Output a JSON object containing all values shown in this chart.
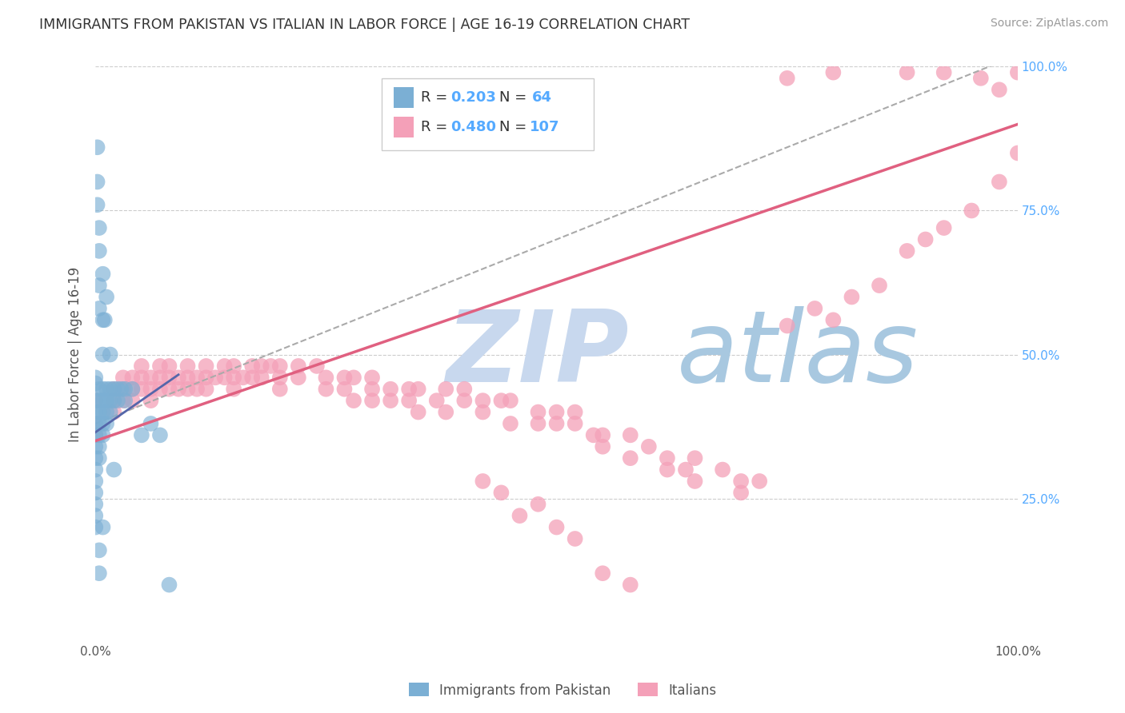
{
  "title": "IMMIGRANTS FROM PAKISTAN VS ITALIAN IN LABOR FORCE | AGE 16-19 CORRELATION CHART",
  "source": "Source: ZipAtlas.com",
  "ylabel": "In Labor Force | Age 16-19",
  "xlim": [
    0,
    1.0
  ],
  "ylim": [
    0,
    1.0
  ],
  "color_pakistan": "#7bafd4",
  "color_italian": "#f4a0b8",
  "color_line_pakistan": "#8888bb",
  "color_line_italian": "#e06080",
  "color_grid": "#cccccc",
  "color_watermark_zip": "#c8d8ee",
  "color_watermark_atlas": "#a8c8e8",
  "pakistan_points": [
    [
      0.0,
      0.42
    ],
    [
      0.0,
      0.4
    ],
    [
      0.0,
      0.38
    ],
    [
      0.0,
      0.36
    ],
    [
      0.0,
      0.34
    ],
    [
      0.0,
      0.32
    ],
    [
      0.0,
      0.3
    ],
    [
      0.0,
      0.28
    ],
    [
      0.0,
      0.26
    ],
    [
      0.0,
      0.24
    ],
    [
      0.0,
      0.22
    ],
    [
      0.0,
      0.2
    ],
    [
      0.0,
      0.45
    ],
    [
      0.0,
      0.46
    ],
    [
      0.004,
      0.44
    ],
    [
      0.004,
      0.42
    ],
    [
      0.004,
      0.4
    ],
    [
      0.004,
      0.38
    ],
    [
      0.004,
      0.36
    ],
    [
      0.004,
      0.34
    ],
    [
      0.004,
      0.32
    ],
    [
      0.008,
      0.44
    ],
    [
      0.008,
      0.42
    ],
    [
      0.008,
      0.4
    ],
    [
      0.008,
      0.38
    ],
    [
      0.008,
      0.36
    ],
    [
      0.008,
      0.5
    ],
    [
      0.012,
      0.44
    ],
    [
      0.012,
      0.42
    ],
    [
      0.012,
      0.4
    ],
    [
      0.012,
      0.38
    ],
    [
      0.016,
      0.44
    ],
    [
      0.016,
      0.42
    ],
    [
      0.016,
      0.4
    ],
    [
      0.02,
      0.44
    ],
    [
      0.02,
      0.42
    ],
    [
      0.024,
      0.44
    ],
    [
      0.024,
      0.42
    ],
    [
      0.028,
      0.44
    ],
    [
      0.032,
      0.44
    ],
    [
      0.032,
      0.42
    ],
    [
      0.04,
      0.44
    ],
    [
      0.05,
      0.36
    ],
    [
      0.06,
      0.38
    ],
    [
      0.07,
      0.36
    ],
    [
      0.08,
      0.1
    ],
    [
      0.004,
      0.58
    ],
    [
      0.004,
      0.62
    ],
    [
      0.004,
      0.68
    ],
    [
      0.004,
      0.72
    ],
    [
      0.008,
      0.56
    ],
    [
      0.008,
      0.64
    ],
    [
      0.002,
      0.76
    ],
    [
      0.002,
      0.8
    ],
    [
      0.01,
      0.56
    ],
    [
      0.012,
      0.6
    ],
    [
      0.016,
      0.5
    ],
    [
      0.002,
      0.86
    ],
    [
      0.004,
      0.16
    ],
    [
      0.004,
      0.12
    ],
    [
      0.008,
      0.2
    ],
    [
      0.02,
      0.3
    ]
  ],
  "italian_points": [
    [
      0.0,
      0.42
    ],
    [
      0.0,
      0.38
    ],
    [
      0.0,
      0.36
    ],
    [
      0.02,
      0.44
    ],
    [
      0.02,
      0.42
    ],
    [
      0.02,
      0.4
    ],
    [
      0.03,
      0.44
    ],
    [
      0.03,
      0.46
    ],
    [
      0.03,
      0.42
    ],
    [
      0.04,
      0.44
    ],
    [
      0.04,
      0.42
    ],
    [
      0.04,
      0.46
    ],
    [
      0.05,
      0.46
    ],
    [
      0.05,
      0.44
    ],
    [
      0.05,
      0.48
    ],
    [
      0.06,
      0.46
    ],
    [
      0.06,
      0.44
    ],
    [
      0.06,
      0.42
    ],
    [
      0.07,
      0.46
    ],
    [
      0.07,
      0.48
    ],
    [
      0.07,
      0.44
    ],
    [
      0.08,
      0.46
    ],
    [
      0.08,
      0.44
    ],
    [
      0.08,
      0.48
    ],
    [
      0.09,
      0.46
    ],
    [
      0.09,
      0.44
    ],
    [
      0.1,
      0.48
    ],
    [
      0.1,
      0.46
    ],
    [
      0.1,
      0.44
    ],
    [
      0.11,
      0.46
    ],
    [
      0.11,
      0.44
    ],
    [
      0.12,
      0.48
    ],
    [
      0.12,
      0.46
    ],
    [
      0.12,
      0.44
    ],
    [
      0.13,
      0.46
    ],
    [
      0.14,
      0.48
    ],
    [
      0.14,
      0.46
    ],
    [
      0.15,
      0.48
    ],
    [
      0.15,
      0.46
    ],
    [
      0.15,
      0.44
    ],
    [
      0.16,
      0.46
    ],
    [
      0.17,
      0.48
    ],
    [
      0.17,
      0.46
    ],
    [
      0.18,
      0.48
    ],
    [
      0.18,
      0.46
    ],
    [
      0.19,
      0.48
    ],
    [
      0.2,
      0.48
    ],
    [
      0.2,
      0.46
    ],
    [
      0.2,
      0.44
    ],
    [
      0.22,
      0.48
    ],
    [
      0.22,
      0.46
    ],
    [
      0.24,
      0.48
    ],
    [
      0.25,
      0.46
    ],
    [
      0.25,
      0.44
    ],
    [
      0.27,
      0.46
    ],
    [
      0.27,
      0.44
    ],
    [
      0.28,
      0.46
    ],
    [
      0.28,
      0.42
    ],
    [
      0.3,
      0.46
    ],
    [
      0.3,
      0.44
    ],
    [
      0.3,
      0.42
    ],
    [
      0.32,
      0.44
    ],
    [
      0.32,
      0.42
    ],
    [
      0.34,
      0.44
    ],
    [
      0.34,
      0.42
    ],
    [
      0.35,
      0.44
    ],
    [
      0.35,
      0.4
    ],
    [
      0.37,
      0.42
    ],
    [
      0.38,
      0.44
    ],
    [
      0.38,
      0.4
    ],
    [
      0.4,
      0.44
    ],
    [
      0.4,
      0.42
    ],
    [
      0.42,
      0.42
    ],
    [
      0.42,
      0.4
    ],
    [
      0.44,
      0.42
    ],
    [
      0.45,
      0.42
    ],
    [
      0.45,
      0.38
    ],
    [
      0.48,
      0.4
    ],
    [
      0.48,
      0.38
    ],
    [
      0.5,
      0.4
    ],
    [
      0.5,
      0.38
    ],
    [
      0.52,
      0.4
    ],
    [
      0.52,
      0.38
    ],
    [
      0.54,
      0.36
    ],
    [
      0.55,
      0.36
    ],
    [
      0.55,
      0.34
    ],
    [
      0.58,
      0.36
    ],
    [
      0.58,
      0.32
    ],
    [
      0.6,
      0.34
    ],
    [
      0.62,
      0.32
    ],
    [
      0.62,
      0.3
    ],
    [
      0.64,
      0.3
    ],
    [
      0.65,
      0.32
    ],
    [
      0.65,
      0.28
    ],
    [
      0.68,
      0.3
    ],
    [
      0.7,
      0.28
    ],
    [
      0.7,
      0.26
    ],
    [
      0.72,
      0.28
    ],
    [
      0.5,
      0.2
    ],
    [
      0.52,
      0.18
    ],
    [
      0.55,
      0.12
    ],
    [
      0.58,
      0.1
    ],
    [
      0.42,
      0.28
    ],
    [
      0.44,
      0.26
    ],
    [
      0.46,
      0.22
    ],
    [
      0.48,
      0.24
    ],
    [
      0.75,
      0.55
    ],
    [
      0.78,
      0.58
    ],
    [
      0.8,
      0.56
    ],
    [
      0.82,
      0.6
    ],
    [
      0.85,
      0.62
    ],
    [
      0.88,
      0.68
    ],
    [
      0.9,
      0.7
    ],
    [
      0.92,
      0.72
    ],
    [
      0.95,
      0.75
    ],
    [
      0.98,
      0.8
    ],
    [
      1.0,
      0.85
    ],
    [
      0.96,
      0.98
    ],
    [
      0.98,
      0.96
    ],
    [
      1.0,
      0.99
    ],
    [
      0.75,
      0.98
    ],
    [
      0.8,
      0.99
    ],
    [
      0.88,
      0.99
    ],
    [
      0.92,
      0.99
    ]
  ]
}
